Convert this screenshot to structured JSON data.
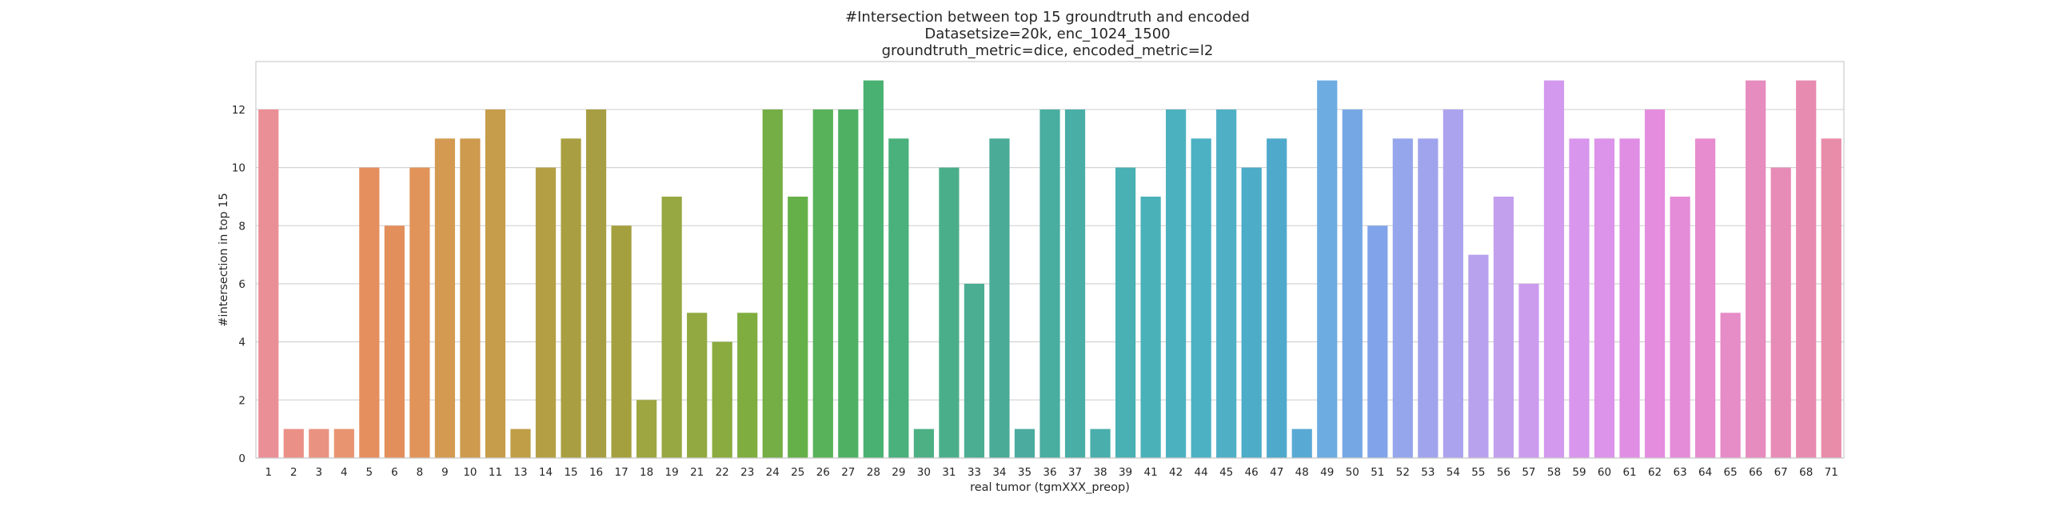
{
  "chart_data": {
    "type": "bar",
    "title_lines": [
      "#Intersection between top 15 groundtruth and encoded",
      "Datasetsize=20k, enc_1024_1500",
      "groundtruth_metric=dice, encoded_metric=l2"
    ],
    "xlabel": "real tumor (tgmXXX_preop)",
    "ylabel": "#intersection in top 15",
    "ylim": [
      0,
      13.65
    ],
    "yticks": [
      0,
      2,
      4,
      6,
      8,
      10,
      12
    ],
    "grid": true,
    "categories": [
      "1",
      "2",
      "3",
      "4",
      "5",
      "6",
      "8",
      "9",
      "10",
      "11",
      "13",
      "14",
      "15",
      "16",
      "17",
      "18",
      "19",
      "21",
      "22",
      "23",
      "24",
      "25",
      "26",
      "27",
      "28",
      "29",
      "30",
      "31",
      "33",
      "34",
      "35",
      "36",
      "37",
      "38",
      "39",
      "41",
      "42",
      "44",
      "45",
      "46",
      "47",
      "48",
      "49",
      "50",
      "51",
      "52",
      "53",
      "54",
      "55",
      "56",
      "57",
      "58",
      "59",
      "60",
      "61",
      "62",
      "63",
      "64",
      "65",
      "66",
      "67",
      "68",
      "71"
    ],
    "values": [
      12,
      1,
      1,
      1,
      10,
      8,
      10,
      11,
      11,
      12,
      1,
      10,
      11,
      12,
      8,
      2,
      9,
      5,
      4,
      5,
      12,
      9,
      12,
      12,
      13,
      11,
      1,
      10,
      6,
      11,
      1,
      12,
      12,
      1,
      10,
      9,
      12,
      11,
      12,
      10,
      11,
      1,
      13,
      12,
      8,
      11,
      11,
      12,
      7,
      9,
      6,
      13,
      11,
      11,
      11,
      12,
      9,
      11,
      5,
      13,
      10,
      13,
      11
    ],
    "colors": [
      "#eb8f97",
      "#eb9087",
      "#ea9281",
      "#e99470",
      "#e68f5e",
      "#e38f5b",
      "#e1945a",
      "#d49a52",
      "#cd9a4e",
      "#c69d4a",
      "#bf9e47",
      "#b49f44",
      "#a99f42",
      "#a79e44",
      "#a5a03f",
      "#9da641",
      "#97a741",
      "#91a940",
      "#8aab3f",
      "#80ad40",
      "#74ae45",
      "#66b04a",
      "#58b259",
      "#4fb064",
      "#49b171",
      "#4ab07c",
      "#4db085",
      "#4bae8b",
      "#4bad92",
      "#4aab97",
      "#4bab9e",
      "#49ad9f",
      "#49aea5",
      "#4aaeac",
      "#49b0b3",
      "#4ab1b9",
      "#4cb1be",
      "#4cb1c2",
      "#4fb0c5",
      "#4dacc8",
      "#4fa9cb",
      "#59a9d5",
      "#6dace1",
      "#76a7e5",
      "#81a3e9",
      "#95a6ec",
      "#a0a4ec",
      "#aca3ee",
      "#b8a2ee",
      "#c3a0ee",
      "#cb9cee",
      "#d399ee",
      "#d896ec",
      "#dc93ea",
      "#e08ee4",
      "#e48ddf",
      "#e58cd8",
      "#e68ccf",
      "#e68cc7",
      "#e78cbf",
      "#e68cb7",
      "#e78cb0",
      "#e78ca9"
    ]
  }
}
